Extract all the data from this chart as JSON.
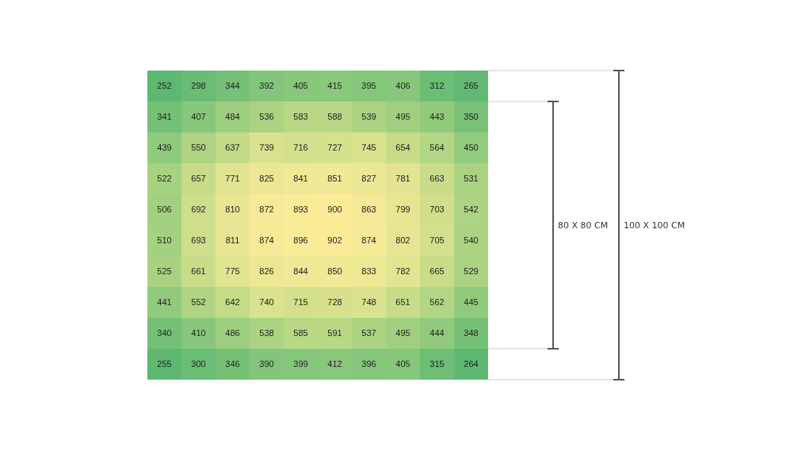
{
  "chart_data": {
    "type": "heatmap",
    "categories": [
      null,
      null,
      null,
      null,
      null,
      null,
      null,
      null,
      null,
      null
    ],
    "y_categories": [
      null,
      null,
      null,
      null,
      null,
      null,
      null,
      null,
      null,
      null
    ],
    "cells": [
      [
        252,
        298,
        344,
        392,
        405,
        415,
        395,
        406,
        312,
        265
      ],
      [
        341,
        407,
        484,
        536,
        583,
        588,
        539,
        495,
        443,
        350
      ],
      [
        439,
        550,
        637,
        739,
        716,
        727,
        745,
        654,
        564,
        450
      ],
      [
        522,
        657,
        771,
        825,
        841,
        851,
        827,
        781,
        663,
        531
      ],
      [
        506,
        692,
        810,
        872,
        893,
        900,
        863,
        799,
        703,
        542
      ],
      [
        510,
        693,
        811,
        874,
        896,
        902,
        874,
        802,
        705,
        540
      ],
      [
        525,
        661,
        775,
        826,
        844,
        850,
        833,
        782,
        665,
        529
      ],
      [
        441,
        552,
        642,
        740,
        715,
        728,
        748,
        651,
        562,
        445
      ],
      [
        340,
        410,
        486,
        538,
        585,
        591,
        537,
        495,
        444,
        348
      ],
      [
        255,
        300,
        346,
        390,
        399,
        412,
        396,
        405,
        315,
        264
      ]
    ],
    "data_labels": true,
    "annotations": [
      "80 X 80 CM",
      "100 X 100 CM"
    ]
  }
}
